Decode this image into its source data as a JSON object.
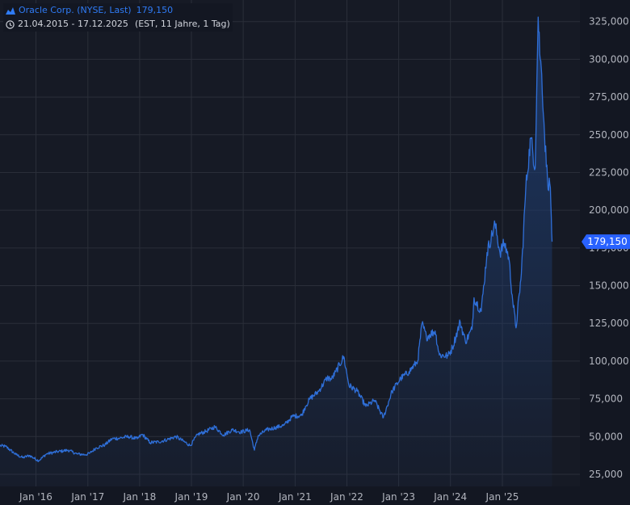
{
  "legend": {
    "title": "Oracle Corp. (NYSE, Last)",
    "value": "179,150",
    "range": "21.04.2015 - 17.12.2025",
    "range_note": "(EST, 11 Jahre, 1 Tag)"
  },
  "colors": {
    "background": "#131722",
    "plot_background": "#161a25",
    "grid": "#2a2e39",
    "line": "#2f6fd8",
    "area_top": "#1f3d70",
    "label_bg": "#2962ff",
    "axis_text": "#b2b5be"
  },
  "chart_data": {
    "type": "area",
    "title": "Oracle Corp. (NYSE, Last)",
    "xlabel": "",
    "ylabel": "",
    "x_range": [
      "2015-04-21",
      "2025-12-17"
    ],
    "ylim": [
      11000,
      336000
    ],
    "y_ticks": [
      25000,
      50000,
      75000,
      100000,
      125000,
      150000,
      175000,
      200000,
      225000,
      250000,
      275000,
      300000,
      325000
    ],
    "y_tick_labels": [
      "25,000",
      "50,000",
      "75,000",
      "100,000",
      "125,000",
      "150,000",
      "175,000",
      "200,000",
      "225,000",
      "250,000",
      "275,000",
      "300,000",
      "325,000"
    ],
    "x_ticks": [
      "2016-01-01",
      "2017-01-01",
      "2018-01-01",
      "2019-01-01",
      "2020-01-01",
      "2021-01-01",
      "2022-01-01",
      "2023-01-01",
      "2024-01-01",
      "2025-01-01"
    ],
    "x_tick_labels": [
      "Jan '16",
      "Jan '17",
      "Jan '18",
      "Jan '19",
      "Jan '20",
      "Jan '21",
      "Jan '22",
      "Jan '23",
      "Jan '24",
      "Jan '25"
    ],
    "grid": true,
    "last_value": 179150,
    "last_value_label": "179,150",
    "series": [
      {
        "points": [
          [
            "2015-04-21",
            44000
          ],
          [
            "2015-06-01",
            43500
          ],
          [
            "2015-08-15",
            38000
          ],
          [
            "2015-10-01",
            36000
          ],
          [
            "2015-11-15",
            37500
          ],
          [
            "2016-01-20",
            34000
          ],
          [
            "2016-03-15",
            38500
          ],
          [
            "2016-06-01",
            40000
          ],
          [
            "2016-08-15",
            41000
          ],
          [
            "2016-10-15",
            38500
          ],
          [
            "2016-12-15",
            38000
          ],
          [
            "2017-01-15",
            39000
          ],
          [
            "2017-03-01",
            42500
          ],
          [
            "2017-05-01",
            44500
          ],
          [
            "2017-06-20",
            48500
          ],
          [
            "2017-08-15",
            49000
          ],
          [
            "2017-10-15",
            50000
          ],
          [
            "2017-12-15",
            48500
          ],
          [
            "2018-01-20",
            51500
          ],
          [
            "2018-03-15",
            46000
          ],
          [
            "2018-05-15",
            46500
          ],
          [
            "2018-07-15",
            48000
          ],
          [
            "2018-09-15",
            50000
          ],
          [
            "2018-12-24",
            44000
          ],
          [
            "2019-02-15",
            51500
          ],
          [
            "2019-04-15",
            53500
          ],
          [
            "2019-06-15",
            56500
          ],
          [
            "2019-08-15",
            51000
          ],
          [
            "2019-10-15",
            54500
          ],
          [
            "2019-12-15",
            53000
          ],
          [
            "2020-02-15",
            54500
          ],
          [
            "2020-03-20",
            41000
          ],
          [
            "2020-04-15",
            50500
          ],
          [
            "2020-06-15",
            54500
          ],
          [
            "2020-08-15",
            56000
          ],
          [
            "2020-10-15",
            57500
          ],
          [
            "2020-12-15",
            63500
          ],
          [
            "2021-02-15",
            64000
          ],
          [
            "2021-03-15",
            70000
          ],
          [
            "2021-04-15",
            75000
          ],
          [
            "2021-06-15",
            80000
          ],
          [
            "2021-08-15",
            89000
          ],
          [
            "2021-09-15",
            88000
          ],
          [
            "2021-10-15",
            93000
          ],
          [
            "2021-12-10",
            103000
          ],
          [
            "2022-01-15",
            84000
          ],
          [
            "2022-03-15",
            80000
          ],
          [
            "2022-05-15",
            70000
          ],
          [
            "2022-07-15",
            74000
          ],
          [
            "2022-09-15",
            62500
          ],
          [
            "2022-11-15",
            80000
          ],
          [
            "2023-01-15",
            88500
          ],
          [
            "2023-03-15",
            93000
          ],
          [
            "2023-05-15",
            100000
          ],
          [
            "2023-06-15",
            125000
          ],
          [
            "2023-07-15",
            116000
          ],
          [
            "2023-09-15",
            120000
          ],
          [
            "2023-10-15",
            104000
          ],
          [
            "2023-12-15",
            103500
          ],
          [
            "2024-01-15",
            109000
          ],
          [
            "2024-03-10",
            126000
          ],
          [
            "2024-04-15",
            113000
          ],
          [
            "2024-06-01",
            121000
          ],
          [
            "2024-06-15",
            142000
          ],
          [
            "2024-08-05",
            133000
          ],
          [
            "2024-09-15",
            172000
          ],
          [
            "2024-11-10",
            191000
          ],
          [
            "2024-12-15",
            172000
          ],
          [
            "2025-01-15",
            178000
          ],
          [
            "2025-02-15",
            169000
          ],
          [
            "2025-03-15",
            140000
          ],
          [
            "2025-04-07",
            122000
          ],
          [
            "2025-05-15",
            158000
          ],
          [
            "2025-06-15",
            215000
          ],
          [
            "2025-07-20",
            248000
          ],
          [
            "2025-08-20",
            228000
          ],
          [
            "2025-09-10",
            328000
          ],
          [
            "2025-09-25",
            300000
          ],
          [
            "2025-10-05",
            290000
          ],
          [
            "2025-10-25",
            250000
          ],
          [
            "2025-11-15",
            220000
          ],
          [
            "2025-12-05",
            215000
          ],
          [
            "2025-12-12",
            195000
          ],
          [
            "2025-12-17",
            179150
          ]
        ]
      }
    ]
  }
}
